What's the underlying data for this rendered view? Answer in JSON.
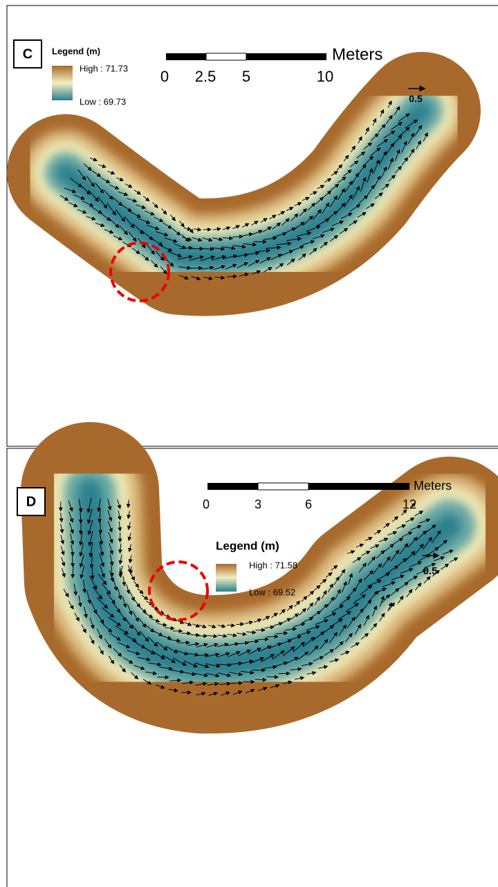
{
  "panels": [
    {
      "label": "C",
      "legend": {
        "title": "Legend (m)",
        "high": "High : 71.73",
        "low": "Low : 69.73"
      },
      "scale_bar": {
        "ticks": [
          "0",
          "2.5",
          "5",
          "10"
        ],
        "unit": "Meters"
      },
      "vector_scale": "0.5"
    },
    {
      "label": "D",
      "legend": {
        "title": "Legend (m)",
        "high": "High : 71.58",
        "low": "Low : 69.52"
      },
      "scale_bar": {
        "ticks": [
          "0",
          "3",
          "6",
          "12"
        ],
        "unit": "Meters"
      },
      "vector_scale": "0.5"
    }
  ]
}
